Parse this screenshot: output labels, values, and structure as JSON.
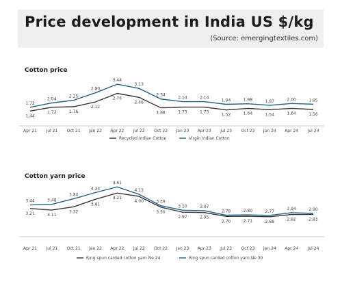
{
  "header": {
    "title": "Price development in India US $/kg",
    "source": "(Source: emergingtextiles.com)"
  },
  "colors": {
    "dark_series": "#333333",
    "blue_series": "#1f5f8b",
    "header_bg": "#efefef"
  },
  "chart_data": [
    {
      "type": "line",
      "title": "Cotton price",
      "categories": [
        "Apr 21",
        "Jul 21",
        "Oct 21",
        "Jan 22",
        "Apr 22",
        "Jul 22",
        "Oct 22",
        "Jan 23",
        "Apr 23",
        "Jul 23",
        "Oct 23",
        "Jan 24",
        "Apr 24",
        "Jul 24"
      ],
      "series": [
        {
          "name": "Recycled Indian Cotton",
          "color": "#333333",
          "labels_below": true,
          "values": [
            1.44,
            1.72,
            1.76,
            2.12,
            2.76,
            2.46,
            1.68,
            1.73,
            1.73,
            1.52,
            1.64,
            1.54,
            1.64,
            1.56
          ]
        },
        {
          "name": "Virgin Indian Cotton",
          "color": "#1f5f8b",
          "labels_below": false,
          "values": [
            1.72,
            2.04,
            2.25,
            2.8,
            3.44,
            3.13,
            2.34,
            2.14,
            2.14,
            1.94,
            1.98,
            1.87,
            2.0,
            1.95
          ]
        }
      ],
      "ylim": [
        1.2,
        3.6
      ],
      "grid": false,
      "legend": "bottom-center"
    },
    {
      "type": "line",
      "title": "Cotton yarn price",
      "categories": [
        "Apr 21",
        "Jul 21",
        "Oct 21",
        "Jan 22",
        "Apr 22",
        "Jul 22",
        "Oct 22",
        "Jan 23",
        "Apr 23",
        "Jul 23",
        "Oct 23",
        "Jan 24",
        "Apr 24",
        "Jul 24"
      ],
      "series": [
        {
          "name": "Ring spun carded cotton yarn Ne 24",
          "color": "#333333",
          "labels_below": true,
          "values": [
            3.21,
            3.11,
            3.32,
            3.81,
            4.21,
            4.0,
            3.3,
            2.97,
            2.95,
            2.7,
            2.71,
            2.68,
            2.82,
            2.83
          ]
        },
        {
          "name": "Ring spun carded cotton yarn Ne 30",
          "color": "#1f5f8b",
          "labels_below": false,
          "values": [
            3.44,
            3.48,
            3.84,
            4.24,
            4.61,
            4.13,
            3.39,
            3.1,
            3.07,
            2.78,
            2.8,
            2.77,
            2.94,
            2.9
          ]
        }
      ],
      "ylim": [
        2.45,
        4.75
      ],
      "grid": false,
      "legend": "bottom-center"
    }
  ]
}
